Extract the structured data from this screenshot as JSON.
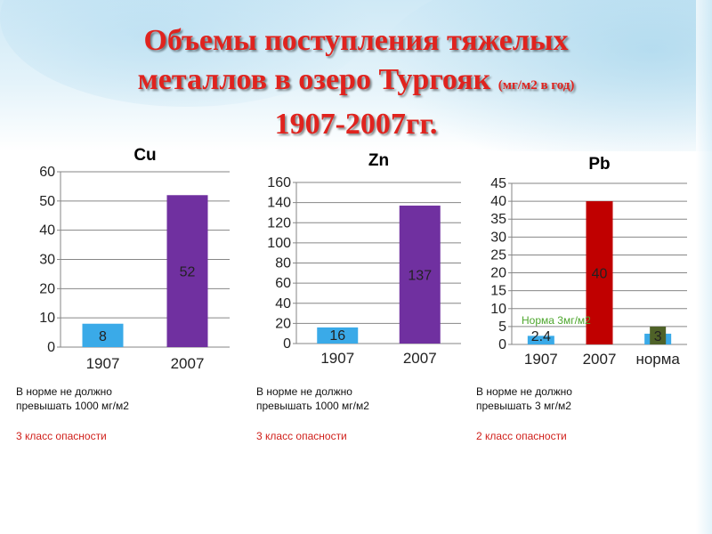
{
  "title": {
    "line1": "Объемы поступления тяжелых",
    "line2_main": "металлов в озеро Тургояк",
    "line2_sub": "(мг/м2 в год)",
    "line3": "1907-2007гг."
  },
  "chart_data": [
    {
      "type": "bar",
      "title": "Cu",
      "categories": [
        "1907",
        "2007"
      ],
      "values": [
        8,
        52
      ],
      "labels": [
        "8",
        "52"
      ],
      "colors": [
        "#3aaae8",
        "#7030a0"
      ],
      "ylim": [
        0,
        60
      ],
      "yticks": [
        0,
        10,
        20,
        30,
        40,
        50,
        60
      ],
      "grid": true
    },
    {
      "type": "bar",
      "title": "Zn",
      "categories": [
        "1907",
        "2007"
      ],
      "values": [
        16,
        137
      ],
      "labels": [
        "16",
        "137"
      ],
      "colors": [
        "#3aaae8",
        "#7030a0"
      ],
      "ylim": [
        0,
        160
      ],
      "yticks": [
        0,
        20,
        40,
        60,
        80,
        100,
        120,
        140,
        160
      ],
      "grid": true
    },
    {
      "type": "bar",
      "title": "Pb",
      "categories": [
        "1907",
        "2007",
        "норма"
      ],
      "values": [
        2.4,
        40,
        3
      ],
      "labels": [
        "2.4",
        "40",
        "3"
      ],
      "colors": [
        "#3aaae8",
        "#c00000",
        "#3aaae8"
      ],
      "ylim": [
        0,
        45
      ],
      "yticks": [
        0,
        5,
        10,
        15,
        20,
        25,
        30,
        35,
        40,
        45
      ],
      "grid": true,
      "annotation": "Норма 3мг/м2",
      "annotation_color": "#4ea72e",
      "norm_marker_color": "#4f6228"
    }
  ],
  "notes": [
    {
      "line1": "В норме не должно",
      "line2_prefix": "превышать ",
      "line2_value": "1000",
      "line2_unit": " мг/м2",
      "hazard_num": "3",
      "hazard_text": " класс опасности"
    },
    {
      "line1": "В норме не должно",
      "line2_prefix": "превышать ",
      "line2_value": "1000",
      "line2_unit": " мг/м2",
      "hazard_num": "3",
      "hazard_text": " класс опасности"
    },
    {
      "line1": "В норме не должно",
      "line2_prefix": "превышать ",
      "line2_value": "3",
      "line2_unit": " мг/м2",
      "hazard_num": "2",
      "hazard_text": " класс опасности"
    }
  ]
}
